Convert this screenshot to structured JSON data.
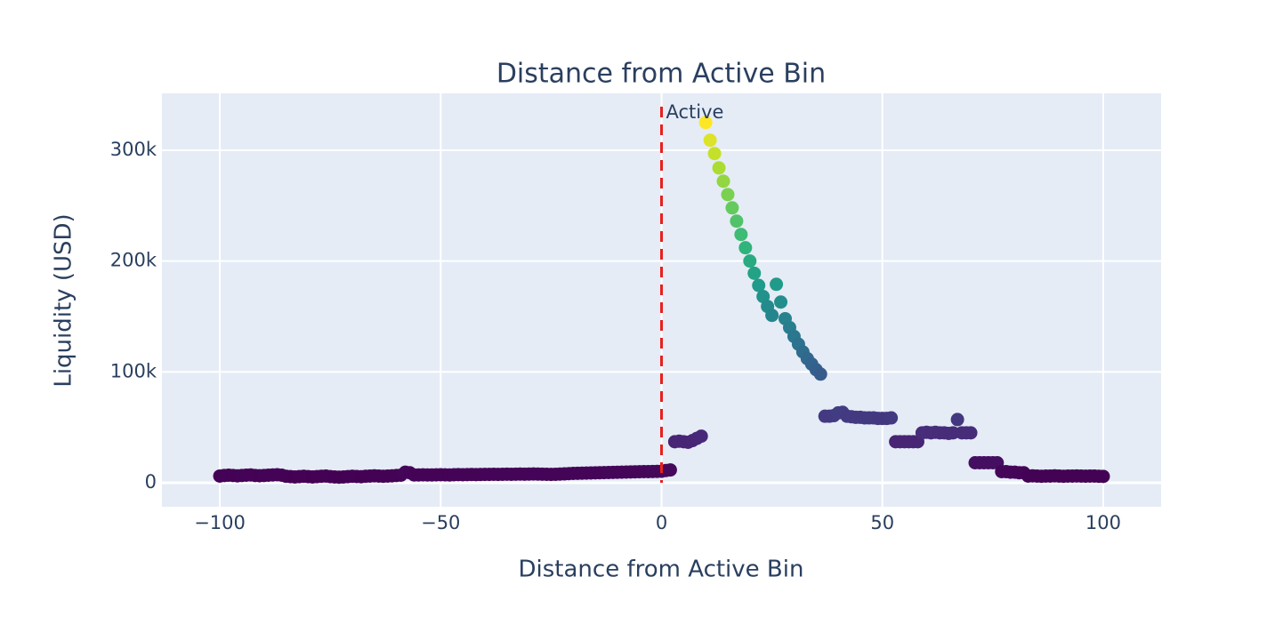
{
  "chart_data": {
    "type": "scatter",
    "title": "Distance from Active Bin",
    "x_label": "Distance from Active Bin",
    "y_label": "Liquidity (USD)",
    "colorscale": "Viridis",
    "background": "#e5ecf6",
    "grid": true,
    "xlim": [
      -113.1,
      113.1
    ],
    "ylim": [
      -21700,
      351300
    ],
    "xticks": [
      {
        "value": -100,
        "label": "−100"
      },
      {
        "value": -50,
        "label": "−50"
      },
      0,
      50,
      100
    ],
    "yticks": [
      0,
      {
        "value": 100000,
        "label": "100k"
      },
      {
        "value": 200000,
        "label": "200k"
      },
      {
        "value": 300000,
        "label": "300k"
      }
    ],
    "vline": {
      "x": 0,
      "color": "#e8201e"
    },
    "annotation": {
      "text": "Active",
      "x": 0
    },
    "x": [
      -100,
      -99,
      -98,
      -97,
      -96,
      -95,
      -94,
      -93,
      -92,
      -91,
      -90,
      -89,
      -88,
      -87,
      -86,
      -85,
      -84,
      -83,
      -82,
      -81,
      -80,
      -79,
      -78,
      -77,
      -76,
      -75,
      -74,
      -73,
      -72,
      -71,
      -70,
      -69,
      -68,
      -67,
      -66,
      -65,
      -64,
      -63,
      -62,
      -61,
      -60,
      -59,
      -58,
      -57,
      -56,
      -55,
      -54,
      -53,
      -52,
      -51,
      -50,
      -49,
      -48,
      -47,
      -46,
      -45,
      -44,
      -43,
      -42,
      -41,
      -40,
      -39,
      -38,
      -37,
      -36,
      -35,
      -34,
      -33,
      -32,
      -31,
      -30,
      -29,
      -28,
      -27,
      -26,
      -25,
      -24,
      -23,
      -22,
      -21,
      -20,
      -19,
      -18,
      -17,
      -16,
      -15,
      -14,
      -13,
      -12,
      -11,
      -10,
      -9,
      -8,
      -7,
      -6,
      -5,
      -4,
      -3,
      -2,
      -1,
      0,
      1,
      2,
      3,
      4,
      5,
      6,
      7,
      8,
      9,
      10,
      11,
      12,
      13,
      14,
      15,
      16,
      17,
      18,
      19,
      20,
      21,
      22,
      23,
      24,
      25,
      26,
      27,
      28,
      29,
      30,
      31,
      32,
      33,
      34,
      35,
      36,
      37,
      38,
      39,
      40,
      41,
      42,
      43,
      44,
      45,
      46,
      47,
      48,
      49,
      50,
      51,
      52,
      53,
      54,
      55,
      56,
      57,
      58,
      59,
      60,
      61,
      62,
      63,
      64,
      65,
      66,
      67,
      68,
      69,
      70,
      71,
      72,
      73,
      74,
      75,
      76,
      77,
      78,
      79,
      80,
      81,
      82,
      83,
      84,
      85,
      86,
      87,
      88,
      89,
      90,
      91,
      92,
      93,
      94,
      95,
      96,
      97,
      98,
      99,
      100
    ],
    "values": [
      6000,
      6500,
      6800,
      6500,
      6200,
      6500,
      6800,
      7000,
      6500,
      6300,
      6500,
      6800,
      7000,
      7200,
      6800,
      5800,
      5500,
      5200,
      5500,
      5800,
      5500,
      5200,
      5500,
      5800,
      6000,
      5500,
      5200,
      5000,
      5200,
      5500,
      5800,
      5600,
      5400,
      5800,
      6000,
      6200,
      6000,
      5800,
      6000,
      6200,
      6500,
      6800,
      9500,
      9000,
      7000,
      7000,
      7100,
      7000,
      7000,
      7100,
      7200,
      7100,
      7000,
      7200,
      7300,
      7200,
      7300,
      7400,
      7300,
      7400,
      7500,
      7500,
      7600,
      7500,
      7600,
      7700,
      7600,
      7700,
      7800,
      7700,
      7800,
      7900,
      7800,
      7700,
      7600,
      7500,
      7600,
      7800,
      8000,
      8200,
      8400,
      8500,
      8600,
      8700,
      8800,
      8900,
      9000,
      9100,
      9200,
      9300,
      9400,
      9500,
      9600,
      9700,
      9800,
      9900,
      10000,
      10000,
      10100,
      10200,
      10300,
      11000,
      11500,
      37000,
      37500,
      37000,
      36500,
      38000,
      40000,
      42000,
      325000,
      309000,
      297000,
      284000,
      272000,
      260000,
      248000,
      236000,
      224000,
      212000,
      200000,
      189000,
      178000,
      168000,
      159000,
      151000,
      179000,
      163000,
      148000,
      140000,
      132000,
      125000,
      118000,
      112000,
      107000,
      102000,
      98000,
      60000,
      60000,
      60500,
      63000,
      63500,
      60000,
      59500,
      59000,
      59000,
      58500,
      58500,
      58500,
      58000,
      58000,
      58000,
      58500,
      37000,
      37000,
      37000,
      37000,
      37000,
      37000,
      45000,
      45500,
      45000,
      45500,
      45000,
      45000,
      44500,
      45000,
      57000,
      45000,
      45000,
      45000,
      18000,
      18000,
      18000,
      18000,
      18000,
      18000,
      10000,
      10000,
      9500,
      9500,
      9000,
      9000,
      6000,
      6200,
      6000,
      5800,
      6000,
      6000,
      6200,
      6000,
      5800,
      6000,
      6000,
      6100,
      6000,
      5900,
      6000,
      6000,
      5800,
      5700
    ]
  }
}
